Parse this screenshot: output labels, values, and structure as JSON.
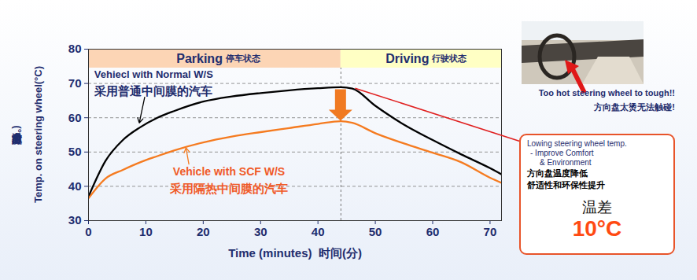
{
  "chart_data": {
    "type": "line",
    "x": [
      0,
      3,
      6,
      9,
      12,
      15,
      20,
      25,
      30,
      35,
      40,
      44,
      46,
      50,
      55,
      60,
      65,
      70,
      72
    ],
    "series": [
      {
        "name": "Vehiecl with Normal W/S",
        "name_cn": "采用普通中间膜的汽车",
        "color": "#000000",
        "values": [
          37,
          47.5,
          53.5,
          57.2,
          60,
          62,
          64.7,
          66.2,
          67.2,
          68,
          68.6,
          68.9,
          68.5,
          63.5,
          58,
          53.5,
          49.3,
          45.3,
          43.5
        ]
      },
      {
        "name": "Vehicle with SCF W/S",
        "name_cn": "采用隔热中间膜的汽车",
        "color": "#f57b20",
        "values": [
          36.5,
          42.3,
          44.8,
          47,
          48.8,
          50.5,
          52.8,
          54.5,
          55.8,
          57,
          58.2,
          59,
          58.5,
          55.5,
          52.5,
          49.8,
          47,
          42.5,
          41
        ]
      }
    ],
    "xlim": [
      0,
      72
    ],
    "xticks": [
      0,
      10,
      20,
      30,
      40,
      50,
      60,
      70
    ],
    "ylim": [
      30,
      80
    ],
    "yticks": [
      30,
      40,
      50,
      60,
      70,
      80
    ],
    "grid": true,
    "xlabel": "Time (minutes)  时间(分)",
    "ylabel": "Temp. on steering wheel(°C)",
    "ylabel_cn": "方向盘温度(°C)",
    "phases": [
      {
        "name": "Parking",
        "name_cn": "停车状态",
        "start": 0,
        "end": 44,
        "color": "#fcd5b5"
      },
      {
        "name": "Driving",
        "name_cn": "行驶状态",
        "start": 44,
        "end": 72,
        "color": "#ffffc4"
      }
    ],
    "annotations": {
      "photo_caption": [
        "Too hot steering wheel to tough!!",
        "方向盘太烫无法触碰!"
      ],
      "callout": [
        "Lowing steering wheel temp.",
        "- Improve Comfort",
        "& Environment",
        "方向盘温度降低",
        "舒适性和环保性提升"
      ],
      "difference_label": "温差",
      "difference_text": "10°C"
    }
  }
}
